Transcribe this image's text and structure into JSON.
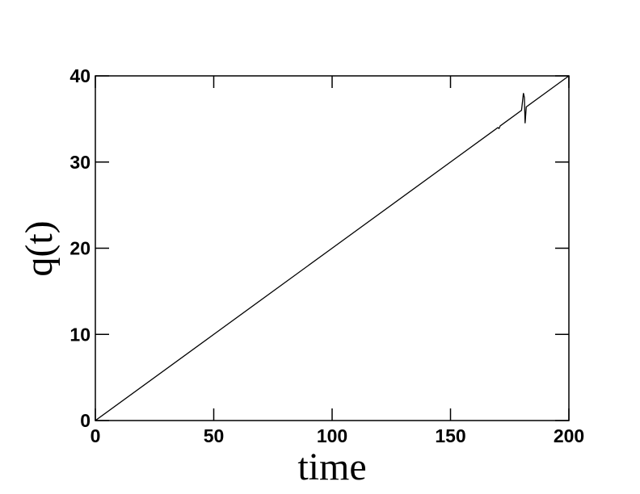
{
  "chart_data": {
    "type": "line",
    "x_label": "time",
    "y_label": "q(t)",
    "series": [
      {
        "color": "#000000",
        "x": [
          0,
          50,
          100,
          150,
          170,
          170.5,
          171,
          180,
          180.8,
          181.2,
          181.5,
          182,
          190,
          200
        ],
        "values": [
          0,
          10,
          20,
          30,
          34,
          33.9,
          34.2,
          36,
          38,
          37.5,
          34.5,
          36.4,
          38,
          40
        ]
      }
    ],
    "xlim": [
      0,
      200
    ],
    "xticks": [
      0,
      50,
      100,
      150,
      200
    ],
    "ylim": [
      0,
      40
    ],
    "yticks": [
      0,
      10,
      20,
      30,
      40
    ]
  }
}
